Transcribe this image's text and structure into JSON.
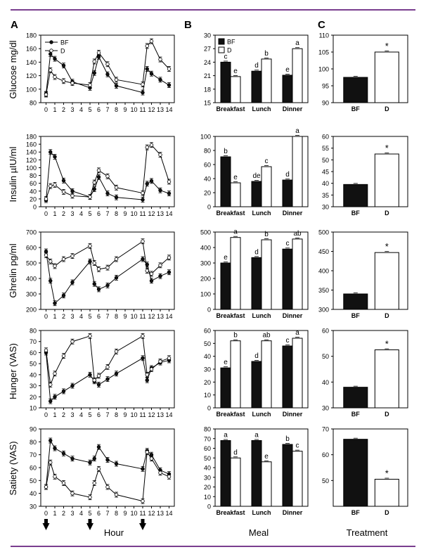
{
  "colors": {
    "rule": "#7a3e8f",
    "bf_fill": "#111111",
    "d_fill": "#ffffff",
    "ink": "#000000"
  },
  "column_labels": [
    "A",
    "B",
    "C"
  ],
  "row_ylabels": [
    "Glucose mg/dl",
    "Insulin µIU/ml",
    "Ghrelin pg/ml",
    "Hunger (VAS)",
    "Satiety (VAS)"
  ],
  "bottom_labels": {
    "hour": "Hour",
    "meal": "Meal",
    "treatment": "Treatment"
  },
  "meal_markers_at_hour": [
    0,
    5,
    11
  ],
  "legend": {
    "bf": "BF",
    "d": "D"
  },
  "chart_data": [
    {
      "type": "line",
      "panel": "A",
      "row": "glucose",
      "x": [
        0,
        0.5,
        1,
        2,
        3,
        5,
        5.5,
        6,
        7,
        8,
        11,
        11.5,
        12,
        13,
        14
      ],
      "xticks": [
        "0",
        "1",
        "2",
        "3",
        "4",
        "5",
        "6",
        "7",
        "8",
        "9",
        "10",
        "11",
        "12",
        "13",
        "14"
      ],
      "xlim": [
        -0.6,
        14.6
      ],
      "ylim": [
        80,
        180
      ],
      "yticks": [
        80,
        100,
        120,
        140,
        160,
        180
      ],
      "series": [
        {
          "name": "BF",
          "values": [
            93,
            152,
            145,
            135,
            111,
            102,
            124,
            148,
            122,
            105,
            95,
            130,
            123,
            114,
            106
          ]
        },
        {
          "name": "D",
          "values": [
            92,
            128,
            118,
            112,
            109,
            106,
            141,
            154,
            137,
            114,
            107,
            164,
            171,
            144,
            130
          ]
        }
      ]
    },
    {
      "type": "line",
      "panel": "A",
      "row": "insulin",
      "x": [
        0,
        0.5,
        1,
        2,
        3,
        5,
        5.5,
        6,
        7,
        8,
        11,
        11.5,
        12,
        13,
        14
      ],
      "xticks": [
        "0",
        "1",
        "2",
        "3",
        "4",
        "5",
        "6",
        "7",
        "8",
        "9",
        "10",
        "11",
        "12",
        "13",
        "14"
      ],
      "xlim": [
        -0.6,
        14.6
      ],
      "ylim": [
        0,
        180
      ],
      "yticks": [
        0,
        20,
        40,
        60,
        80,
        100,
        120,
        140,
        160,
        180
      ],
      "series": [
        {
          "name": "BF",
          "values": [
            17,
            140,
            128,
            67,
            40,
            25,
            45,
            76,
            34,
            24,
            18,
            59,
            66,
            42,
            34
          ]
        },
        {
          "name": "D",
          "values": [
            20,
            53,
            56,
            38,
            28,
            25,
            62,
            93,
            78,
            49,
            35,
            152,
            158,
            133,
            64
          ]
        }
      ]
    },
    {
      "type": "line",
      "panel": "A",
      "row": "ghrelin",
      "x": [
        0,
        0.5,
        1,
        2,
        3,
        5,
        5.5,
        6,
        7,
        8,
        11,
        11.5,
        12,
        13,
        14
      ],
      "xticks": [
        "0",
        "1",
        "2",
        "3",
        "4",
        "5",
        "6",
        "7",
        "8",
        "9",
        "10",
        "11",
        "12",
        "13",
        "14"
      ],
      "xlim": [
        -0.6,
        14.6
      ],
      "ylim": [
        200,
        700
      ],
      "yticks": [
        200,
        300,
        400,
        500,
        600,
        700
      ],
      "series": [
        {
          "name": "BF",
          "values": [
            575,
            385,
            240,
            290,
            375,
            510,
            365,
            330,
            355,
            405,
            525,
            490,
            385,
            415,
            440
          ]
        },
        {
          "name": "D",
          "values": [
            550,
            510,
            480,
            525,
            545,
            610,
            500,
            460,
            470,
            525,
            640,
            450,
            430,
            485,
            535
          ]
        }
      ]
    },
    {
      "type": "line",
      "panel": "A",
      "row": "hunger",
      "x": [
        0,
        0.5,
        1,
        2,
        3,
        5,
        5.5,
        6,
        7,
        8,
        11,
        11.5,
        12,
        13,
        14
      ],
      "xticks": [
        "0",
        "1",
        "2",
        "3",
        "4",
        "5",
        "6",
        "7",
        "8",
        "9",
        "10",
        "11",
        "12",
        "13",
        "14"
      ],
      "xlim": [
        -0.6,
        14.6
      ],
      "ylim": [
        10,
        80
      ],
      "yticks": [
        10,
        20,
        30,
        40,
        50,
        60,
        70,
        80
      ],
      "series": [
        {
          "name": "BF",
          "values": [
            60,
            16,
            20,
            25,
            30,
            40,
            34,
            31,
            36,
            41,
            55,
            35,
            46,
            51,
            53
          ]
        },
        {
          "name": "D",
          "values": [
            62,
            31,
            41,
            57,
            70,
            75,
            35,
            39,
            47,
            61,
            75,
            40,
            45,
            52,
            55
          ]
        }
      ]
    },
    {
      "type": "line",
      "panel": "A",
      "row": "satiety",
      "x": [
        0,
        0.5,
        1,
        2,
        3,
        5,
        5.5,
        6,
        7,
        8,
        11,
        11.5,
        12,
        13,
        14
      ],
      "xticks": [
        "0",
        "1",
        "2",
        "3",
        "4",
        "5",
        "6",
        "7",
        "8",
        "9",
        "10",
        "11",
        "12",
        "13",
        "14"
      ],
      "xlim": [
        -0.6,
        14.6
      ],
      "ylim": [
        30,
        90
      ],
      "yticks": [
        30,
        40,
        50,
        60,
        70,
        80,
        90
      ],
      "series": [
        {
          "name": "BF",
          "values": [
            45,
            81,
            75,
            71,
            67,
            64,
            67,
            76,
            66,
            63,
            59,
            73,
            70,
            58,
            55
          ]
        },
        {
          "name": "D",
          "values": [
            45,
            64,
            53,
            48,
            40,
            37,
            48,
            59,
            45,
            39,
            34,
            72,
            67,
            56,
            53
          ]
        }
      ]
    },
    {
      "type": "bar",
      "panel": "B",
      "row": "glucose",
      "categories": [
        "Breakfast",
        "Lunch",
        "Dinner"
      ],
      "ylim": [
        15,
        30
      ],
      "yticks": [
        15,
        18,
        21,
        24,
        27,
        30
      ],
      "series": [
        {
          "name": "BF",
          "values": [
            24.0,
            22.0,
            21.1
          ],
          "labels": [
            "c",
            "d",
            "e"
          ]
        },
        {
          "name": "D",
          "values": [
            20.8,
            24.7,
            27.0
          ],
          "labels": [
            "e",
            "b",
            "a"
          ]
        }
      ]
    },
    {
      "type": "bar",
      "panel": "B",
      "row": "insulin",
      "categories": [
        "Breakfast",
        "Lunch",
        "Dinner"
      ],
      "ylim": [
        0,
        100
      ],
      "yticks": [
        0,
        20,
        40,
        60,
        80,
        100
      ],
      "series": [
        {
          "name": "BF",
          "values": [
            71,
            36,
            38
          ],
          "labels": [
            "b",
            "de",
            "d"
          ]
        },
        {
          "name": "D",
          "values": [
            34,
            57,
            100
          ],
          "labels": [
            "e",
            "c",
            "a"
          ]
        }
      ]
    },
    {
      "type": "bar",
      "panel": "B",
      "row": "ghrelin",
      "categories": [
        "Breakfast",
        "Lunch",
        "Dinner"
      ],
      "ylim": [
        0,
        500
      ],
      "yticks": [
        0,
        100,
        200,
        300,
        400,
        500
      ],
      "series": [
        {
          "name": "BF",
          "values": [
            300,
            335,
            390
          ],
          "labels": [
            "e",
            "d",
            "c"
          ]
        },
        {
          "name": "D",
          "values": [
            465,
            450,
            455
          ],
          "labels": [
            "a",
            "b",
            "ab"
          ]
        }
      ]
    },
    {
      "type": "bar",
      "panel": "B",
      "row": "hunger",
      "categories": [
        "Breakfast",
        "Lunch",
        "Dinner"
      ],
      "ylim": [
        0,
        60
      ],
      "yticks": [
        0,
        10,
        20,
        30,
        40,
        50,
        60
      ],
      "series": [
        {
          "name": "BF",
          "values": [
            31,
            36,
            48
          ],
          "labels": [
            "e",
            "d",
            "c"
          ]
        },
        {
          "name": "D",
          "values": [
            52,
            52,
            54
          ],
          "labels": [
            "b",
            "ab",
            "a"
          ]
        }
      ]
    },
    {
      "type": "bar",
      "panel": "B",
      "row": "satiety",
      "categories": [
        "Breakfast",
        "Lunch",
        "Dinner"
      ],
      "ylim": [
        0,
        80
      ],
      "yticks": [
        0,
        10,
        20,
        30,
        40,
        50,
        60,
        70,
        80
      ],
      "series": [
        {
          "name": "BF",
          "values": [
            68,
            68,
            64
          ],
          "labels": [
            "a",
            "a",
            "b"
          ]
        },
        {
          "name": "D",
          "values": [
            50,
            46,
            57
          ],
          "labels": [
            "d",
            "e",
            "c"
          ]
        }
      ]
    },
    {
      "type": "bar",
      "panel": "C",
      "row": "glucose",
      "categories": [
        "BF",
        "D"
      ],
      "values": [
        97.5,
        105
      ],
      "sig": [
        "",
        "*"
      ],
      "ylim": [
        90,
        110
      ],
      "yticks": [
        90,
        95,
        100,
        105,
        110
      ]
    },
    {
      "type": "bar",
      "panel": "C",
      "row": "insulin",
      "categories": [
        "BF",
        "D"
      ],
      "values": [
        39.5,
        52.5
      ],
      "sig": [
        "",
        "*"
      ],
      "ylim": [
        30,
        60
      ],
      "yticks": [
        30,
        35,
        40,
        45,
        50,
        55,
        60
      ]
    },
    {
      "type": "bar",
      "panel": "C",
      "row": "ghrelin",
      "categories": [
        "BF",
        "D"
      ],
      "values": [
        340,
        447
      ],
      "sig": [
        "",
        "*"
      ],
      "ylim": [
        300,
        500
      ],
      "yticks": [
        300,
        350,
        400,
        450,
        500
      ]
    },
    {
      "type": "bar",
      "panel": "C",
      "row": "hunger",
      "categories": [
        "BF",
        "D"
      ],
      "values": [
        38,
        52.5
      ],
      "sig": [
        "",
        "*"
      ],
      "ylim": [
        30,
        60
      ],
      "yticks": [
        30,
        40,
        50,
        60
      ]
    },
    {
      "type": "bar",
      "panel": "C",
      "row": "satiety",
      "categories": [
        "BF",
        "D"
      ],
      "values": [
        66,
        50.5
      ],
      "sig": [
        "",
        "*"
      ],
      "ylim": [
        40,
        70
      ],
      "yticks": [
        50,
        60,
        70
      ]
    }
  ]
}
